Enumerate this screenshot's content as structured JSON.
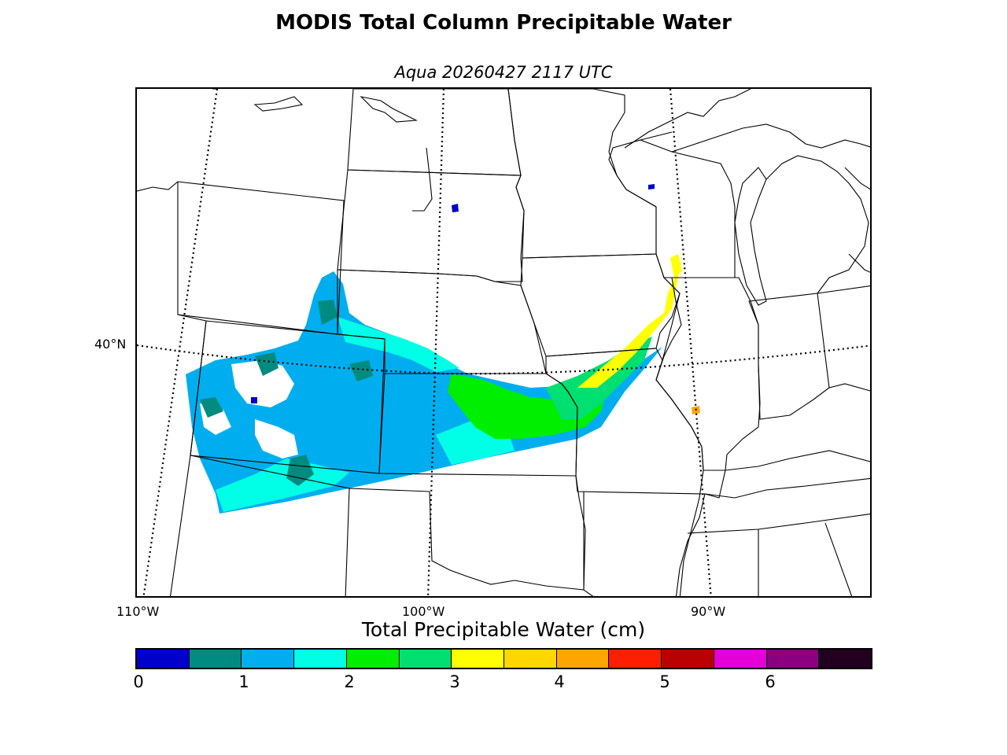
{
  "title": "MODIS Total Column Precipitable Water",
  "subtitle": "Aqua 20260427 2117 UTC",
  "map": {
    "lat_labels": [
      {
        "text": "40°N"
      }
    ],
    "lon_labels": [
      {
        "text": "110°W"
      },
      {
        "text": "100°W"
      },
      {
        "text": "90°W"
      }
    ],
    "graticule": "dotted",
    "boundaries": [
      "states",
      "coastlines",
      "great-lakes"
    ]
  },
  "colorbar": {
    "label": "Total Precipitable Water (cm)",
    "ticks": [
      "0",
      "1",
      "2",
      "3",
      "4",
      "5",
      "6"
    ],
    "colors": [
      "#0000cc",
      "#008b80",
      "#00aeef",
      "#00ffe6",
      "#00ee00",
      "#00e070",
      "#ffff00",
      "#ffd700",
      "#ffa500",
      "#ff1e00",
      "#bb0000",
      "#e600d8",
      "#8b0080",
      "#230020"
    ]
  }
}
